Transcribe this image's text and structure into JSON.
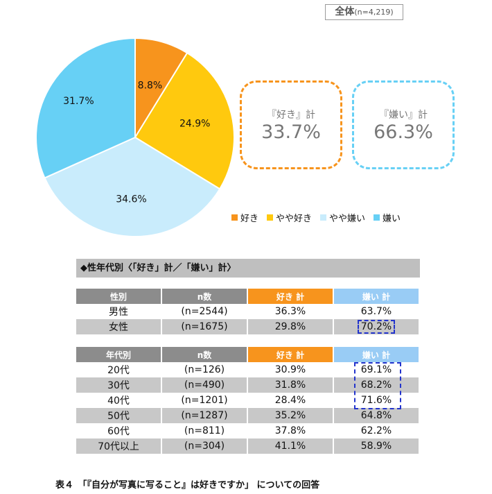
{
  "overall": {
    "label": "全体",
    "n": "(n=4,219)"
  },
  "chart_data": {
    "type": "pie",
    "categories": [
      "好き",
      "やや好き",
      "やや嫌い",
      "嫌い"
    ],
    "values": [
      8.8,
      24.9,
      34.6,
      31.7
    ],
    "labels": [
      "8.8%",
      "24.9%",
      "34.6%",
      "31.7%"
    ],
    "colors": [
      "#f7941d",
      "#ffc90e",
      "#c9ecfc",
      "#67d0f5"
    ],
    "legend": "bottom-right"
  },
  "summary": {
    "like": {
      "label": "『好き』計",
      "value": "33.7%",
      "color": "#f7941d"
    },
    "dislike": {
      "label": "『嫌い』計",
      "value": "66.3%",
      "color": "#67d0f5"
    }
  },
  "section_title": "◆性年代別〈「好き」計／「嫌い」計〉",
  "gender_table": {
    "headers": [
      "性別",
      "n数",
      "好き 計",
      "嫌い 計"
    ],
    "rows": [
      [
        "男性",
        "(n=2544)",
        "36.3%",
        "63.7%"
      ],
      [
        "女性",
        "(n=1675)",
        "29.8%",
        "70.2%"
      ]
    ]
  },
  "age_table": {
    "headers": [
      "年代別",
      "n数",
      "好き 計",
      "嫌い 計"
    ],
    "rows": [
      [
        "20代",
        "(n=126)",
        "30.9%",
        "69.1%"
      ],
      [
        "30代",
        "(n=490)",
        "31.8%",
        "68.2%"
      ],
      [
        "40代",
        "(n=1201)",
        "28.4%",
        "71.6%"
      ],
      [
        "50代",
        "(n=1287)",
        "35.2%",
        "64.8%"
      ],
      [
        "60代",
        "(n=811)",
        "37.8%",
        "62.2%"
      ],
      [
        "70代以上",
        "(n=304)",
        "41.1%",
        "58.9%"
      ]
    ]
  },
  "caption": "表４　「『自分が写真に写ること』は好きですか」 についての回答"
}
